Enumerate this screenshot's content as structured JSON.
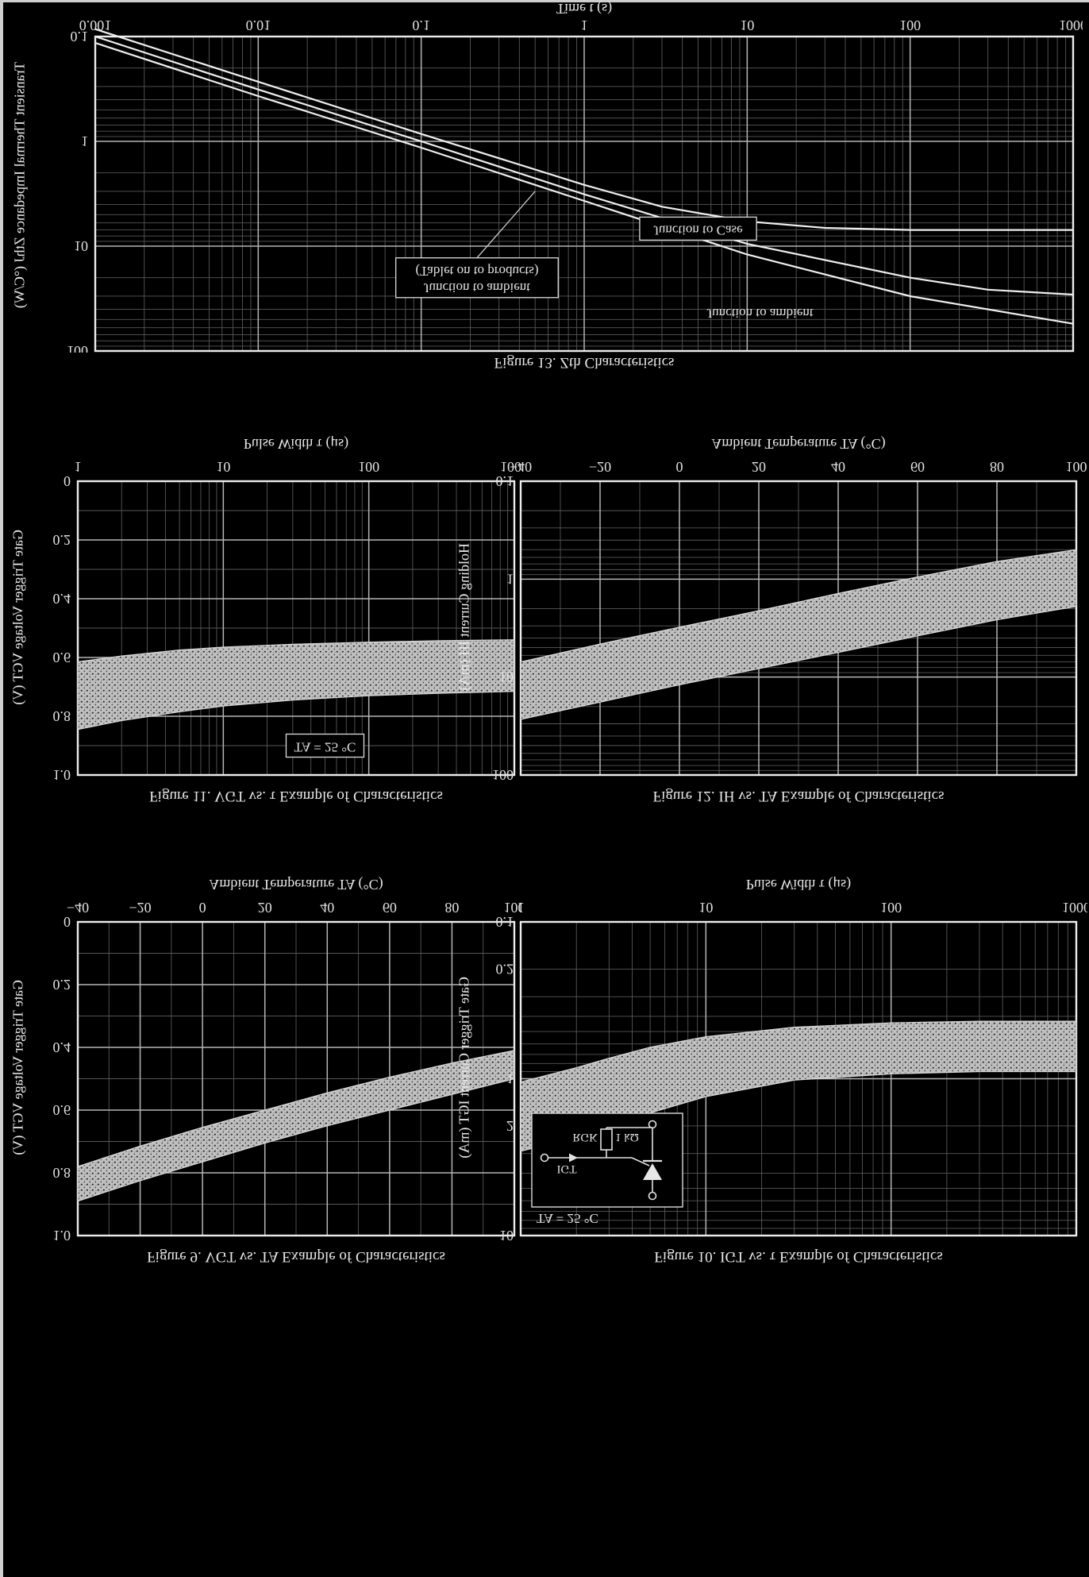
{
  "page": {
    "background": "#000000",
    "ink": "#e4e4e4",
    "appearance": "photocopy negative (white lines on black), page shown upside-down (vertically flipped)"
  },
  "chart_data": [
    {
      "id": "fig9",
      "type": "area",
      "title": "Figure 9. VGT vs. TA Example of Characteristics",
      "xlabel": "Ambient Temperature  TA  (°C)",
      "ylabel": "Gate Trigger Voltage  VGT  (V)",
      "xscale": "linear",
      "yscale": "linear",
      "xlim": [
        -40,
        100
      ],
      "ylim": [
        0,
        1
      ],
      "xticks": [
        -40,
        -20,
        0,
        20,
        40,
        60,
        80,
        100
      ],
      "xtick_labels": [
        "−40",
        "−20",
        "0",
        "20",
        "40",
        "60",
        "80",
        "100"
      ],
      "yticks": [
        0,
        0.2,
        0.4,
        0.6,
        0.8,
        1
      ],
      "ytick_labels": [
        "0",
        "0.2",
        "0.4",
        "0.6",
        "0.8",
        "1.0"
      ],
      "xminor": 10,
      "yminor": 0.1,
      "grid": "on",
      "legend": "none",
      "band": {
        "x": [
          -40,
          -20,
          0,
          20,
          40,
          60,
          80,
          100
        ],
        "lower": [
          0.78,
          0.715,
          0.655,
          0.6,
          0.545,
          0.495,
          0.45,
          0.41
        ],
        "upper": [
          0.89,
          0.825,
          0.765,
          0.705,
          0.65,
          0.6,
          0.55,
          0.5
        ]
      },
      "annotations": []
    },
    {
      "id": "fig10",
      "type": "area",
      "title": "Figure 10. IGT vs. τ Example of Characteristics",
      "xlabel": "Pulse Width  τ  (μs)",
      "ylabel": "Gate Trigger Current  IGT  (mA)",
      "xscale": "log",
      "yscale": "log",
      "xlim": [
        1,
        1000
      ],
      "ylim": [
        0.1,
        10
      ],
      "xticks": [
        1,
        10,
        100,
        1000
      ],
      "yticks": [
        0.1,
        0.2,
        1,
        2,
        10
      ],
      "grid": "on",
      "legend": "none",
      "band": {
        "x": [
          1,
          2,
          3,
          5,
          10,
          30,
          100,
          300,
          1000
        ],
        "lower": [
          1.05,
          0.85,
          0.74,
          0.63,
          0.54,
          0.47,
          0.44,
          0.43,
          0.43
        ],
        "upper": [
          2.9,
          2.35,
          2.0,
          1.65,
          1.3,
          1.02,
          0.93,
          0.9,
          0.9
        ]
      },
      "annotations": [],
      "inset": {
        "note": "TA = 25 °C",
        "circuit": {
          "current_label": "IGT",
          "resistor_name": "RGK",
          "resistor_value": "1 kΩ"
        }
      }
    },
    {
      "id": "fig11",
      "type": "area",
      "title": "Figure 11. VGT vs. τ Example of Characteristics",
      "xlabel": "Pulse Width  τ  (μs)",
      "ylabel": "Gate Trigger Voltage  VGT  (V)",
      "xscale": "log",
      "yscale": "linear",
      "xlim": [
        1,
        1000
      ],
      "ylim": [
        0,
        1
      ],
      "xticks": [
        1,
        10,
        100,
        1000
      ],
      "yticks": [
        0,
        0.2,
        0.4,
        0.6,
        0.8,
        1
      ],
      "ytick_labels": [
        "0",
        "0.2",
        "0.4",
        "0.6",
        "0.8",
        "1.0"
      ],
      "yminor": 0.1,
      "grid": "on",
      "legend": "none",
      "band": {
        "x": [
          1,
          2,
          5,
          10,
          30,
          100,
          300,
          1000
        ],
        "lower": [
          0.615,
          0.595,
          0.575,
          0.565,
          0.555,
          0.548,
          0.543,
          0.54
        ],
        "upper": [
          0.845,
          0.815,
          0.785,
          0.765,
          0.745,
          0.73,
          0.722,
          0.715
        ]
      },
      "annotations": [
        {
          "text": "TA = 25 °C",
          "x": 50,
          "y": 0.9,
          "boxed": true
        }
      ]
    },
    {
      "id": "fig12",
      "type": "area",
      "title": "Figure 12. IH vs. TA Example of Characteristics",
      "xlabel": "Ambient Temperature  TA  (°C)",
      "ylabel": "Holding Current  IH  (mA)",
      "xscale": "linear",
      "yscale": "log",
      "xlim": [
        -40,
        100
      ],
      "ylim": [
        0.1,
        100
      ],
      "xticks": [
        -40,
        -20,
        0,
        20,
        40,
        60,
        80,
        100
      ],
      "xtick_labels": [
        "−40",
        "−20",
        "0",
        "20",
        "40",
        "60",
        "80",
        "100"
      ],
      "yticks": [
        0.1,
        1,
        10,
        100
      ],
      "xminor": 10,
      "grid": "on",
      "legend": "none",
      "band": {
        "x": [
          -40,
          -20,
          0,
          20,
          40,
          60,
          80,
          100
        ],
        "lower": [
          7.0,
          4.6,
          3.1,
          2.1,
          1.4,
          0.95,
          0.66,
          0.5
        ],
        "upper": [
          27,
          18,
          12,
          8.2,
          5.6,
          3.8,
          2.6,
          1.9
        ]
      },
      "annotations": []
    },
    {
      "id": "fig13",
      "type": "line",
      "title": "Figure 13. Zth Characteristics",
      "xlabel": "Time  t  (s)",
      "ylabel": "Transient Thermal Impedance  ZthJ  (°C/W)",
      "xscale": "log",
      "yscale": "log",
      "xlim": [
        0.001,
        1000
      ],
      "ylim": [
        0.1,
        100
      ],
      "xticks": [
        0.001,
        0.01,
        0.1,
        1,
        10,
        100,
        1000
      ],
      "yticks": [
        0.1,
        1,
        10,
        100
      ],
      "grid": "on",
      "legend": "labels-on-curves",
      "series": [
        {
          "name": "Junction to Case",
          "points": [
            [
              0.001,
              0.085
            ],
            [
              0.01,
              0.27
            ],
            [
              0.1,
              0.85
            ],
            [
              1,
              2.6
            ],
            [
              3,
              4.2
            ],
            [
              10,
              5.8
            ],
            [
              30,
              6.7
            ],
            [
              100,
              7.0
            ],
            [
              1000,
              7.0
            ]
          ]
        },
        {
          "name": "Junction to ambient (Tablet on to products)",
          "points": [
            [
              0.001,
              0.1
            ],
            [
              0.01,
              0.32
            ],
            [
              0.1,
              1.0
            ],
            [
              1,
              3.2
            ],
            [
              10,
              9.5
            ],
            [
              100,
              20
            ],
            [
              300,
              26
            ],
            [
              1000,
              29
            ]
          ]
        },
        {
          "name": "Junction to ambient",
          "points": [
            [
              0.001,
              0.115
            ],
            [
              0.01,
              0.37
            ],
            [
              0.1,
              1.15
            ],
            [
              1,
              3.7
            ],
            [
              10,
              12
            ],
            [
              100,
              30
            ],
            [
              1000,
              55
            ]
          ]
        }
      ],
      "annotations": [
        {
          "text": "Junction to Case",
          "x": 5,
          "y": 6.8,
          "boxed": true
        },
        {
          "lines": [
            "Junction to ambient",
            "(Tablet on to products)"
          ],
          "x": 0.22,
          "y": 20,
          "boxed": true,
          "leader": [
            0.5,
            3.0
          ]
        },
        {
          "text": "Junction to ambient",
          "x": 12,
          "y": 42,
          "boxed": false
        }
      ]
    }
  ]
}
